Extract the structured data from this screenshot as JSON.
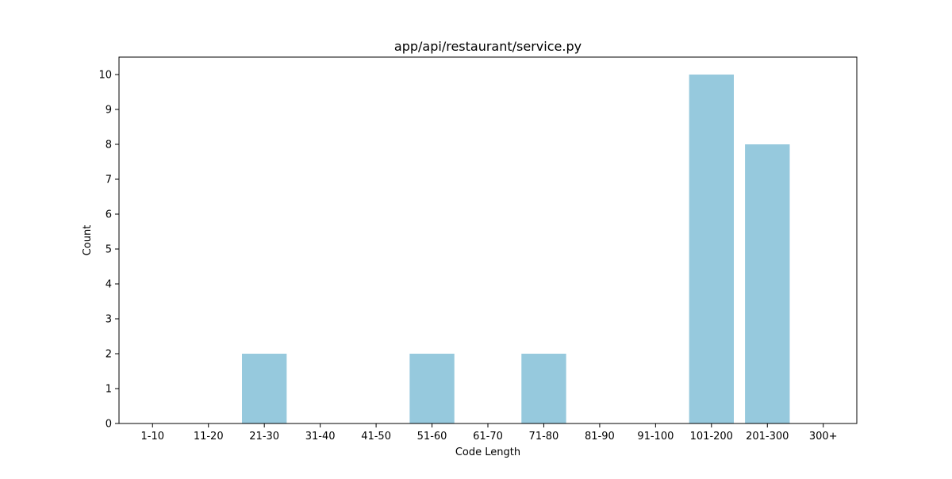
{
  "chart_data": {
    "type": "bar",
    "title": "app/api/restaurant/service.py",
    "xlabel": "Code Length",
    "ylabel": "Count",
    "categories": [
      "1-10",
      "11-20",
      "21-30",
      "31-40",
      "41-50",
      "51-60",
      "61-70",
      "71-80",
      "81-90",
      "91-100",
      "101-200",
      "201-300",
      "300+"
    ],
    "values": [
      0,
      0,
      2,
      0,
      0,
      2,
      0,
      2,
      0,
      0,
      10,
      8,
      0
    ],
    "ylim": [
      0,
      10.5
    ],
    "yticks": [
      0,
      1,
      2,
      3,
      4,
      5,
      6,
      7,
      8,
      9,
      10
    ],
    "bar_color": "#96c9dd",
    "grid": false,
    "legend": false
  }
}
